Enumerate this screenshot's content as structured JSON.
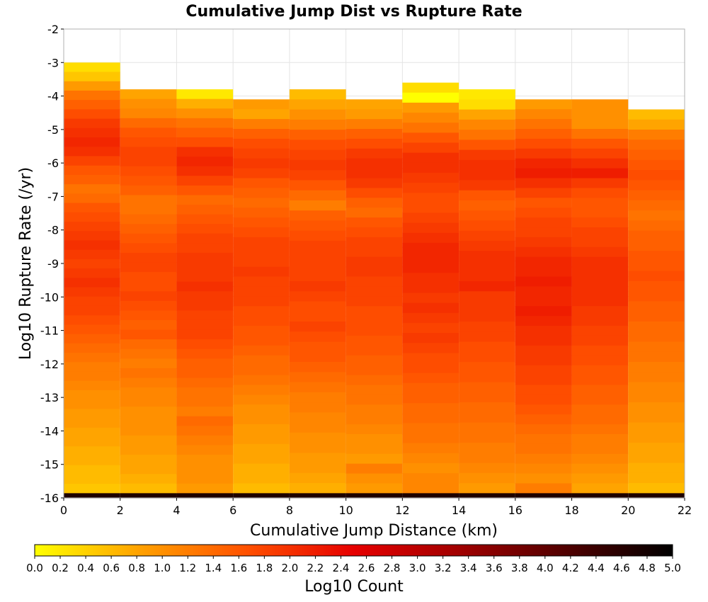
{
  "chart_data": {
    "type": "heatmap",
    "title": "Cumulative Jump Dist vs Rupture Rate",
    "xlabel": "Cumulative Jump Distance (km)",
    "ylabel": "Log10 Rupture Rate (/yr)",
    "xlim": [
      0,
      22
    ],
    "ylim": [
      -16,
      -2
    ],
    "x_ticks": [
      "0",
      "2",
      "4",
      "6",
      "8",
      "10",
      "12",
      "14",
      "16",
      "18",
      "20",
      "22"
    ],
    "y_ticks": [
      "-2",
      "-3",
      "-4",
      "-5",
      "-6",
      "-7",
      "-8",
      "-9",
      "-10",
      "-11",
      "-12",
      "-13",
      "-14",
      "-15",
      "-16"
    ],
    "x_bins": [
      0,
      2,
      4,
      6,
      8,
      10,
      12,
      14,
      16,
      18,
      20,
      22
    ],
    "y_bin_width": 0.288,
    "grid": true,
    "colorbar": {
      "label": "Log10 Count",
      "range": [
        0.0,
        5.0
      ],
      "ticks": [
        "0.0",
        "0.2",
        "0.4",
        "0.6",
        "0.8",
        "1.0",
        "1.2",
        "1.4",
        "1.6",
        "1.8",
        "2.0",
        "2.2",
        "2.4",
        "2.6",
        "2.8",
        "3.0",
        "3.2",
        "3.4",
        "3.6",
        "3.8",
        "4.0",
        "4.2",
        "4.4",
        "4.6",
        "4.8",
        "5.0"
      ],
      "colors": [
        "#ffff00",
        "#ffa000",
        "#ff5000",
        "#e60000",
        "#a00000",
        "#500000",
        "#000000"
      ]
    },
    "columns": [
      {
        "x_bin": "0-2",
        "top": -3.0,
        "values": [
          0.3,
          0.5,
          0.9,
          1.3,
          1.5,
          1.7,
          1.9,
          2.0,
          2.1,
          2.0,
          1.8,
          1.6,
          1.5,
          1.3,
          1.4,
          1.6,
          1.7,
          1.8,
          1.9,
          2.0,
          1.9,
          1.8,
          1.9,
          2.0,
          1.9,
          1.8,
          1.8,
          1.7,
          1.6,
          1.5,
          1.4,
          1.3,
          1.2,
          1.2,
          1.1,
          1.0,
          1.0,
          0.9,
          0.9,
          0.8,
          0.8,
          0.7,
          0.7,
          0.6,
          0.6,
          0.5,
          4.7
        ]
      },
      {
        "x_bin": "2-4",
        "top": -3.8,
        "values": [
          0.8,
          1.0,
          1.1,
          1.4,
          1.6,
          1.7,
          1.8,
          1.8,
          1.7,
          1.6,
          1.5,
          1.3,
          1.3,
          1.4,
          1.5,
          1.6,
          1.7,
          1.8,
          1.8,
          1.7,
          1.7,
          1.8,
          1.7,
          1.6,
          1.5,
          1.6,
          1.4,
          1.3,
          1.2,
          1.3,
          1.2,
          1.1,
          1.1,
          1.0,
          1.0,
          1.0,
          0.9,
          0.9,
          0.8,
          0.8,
          0.7,
          0.6,
          4.7
        ]
      },
      {
        "x_bin": "4-6",
        "top": -3.8,
        "values": [
          0.2,
          0.7,
          1.0,
          1.3,
          1.5,
          1.7,
          2.0,
          2.1,
          2.0,
          1.8,
          1.6,
          1.4,
          1.5,
          1.6,
          1.7,
          1.8,
          1.8,
          1.9,
          1.9,
          1.9,
          2.0,
          1.9,
          1.9,
          1.8,
          1.8,
          1.8,
          1.7,
          1.6,
          1.5,
          1.5,
          1.4,
          1.3,
          1.3,
          1.2,
          1.4,
          1.3,
          1.2,
          1.1,
          1.0,
          1.0,
          1.0,
          0.9,
          4.7
        ]
      },
      {
        "x_bin": "6-8",
        "top": -4.1,
        "values": [
          0.9,
          0.8,
          1.2,
          1.5,
          1.7,
          1.8,
          1.9,
          1.8,
          1.6,
          1.5,
          1.4,
          1.5,
          1.6,
          1.7,
          1.8,
          1.8,
          1.8,
          1.9,
          1.8,
          1.8,
          1.8,
          1.7,
          1.7,
          1.6,
          1.6,
          1.5,
          1.4,
          1.4,
          1.3,
          1.2,
          1.1,
          1.0,
          1.0,
          0.9,
          0.9,
          0.8,
          0.8,
          0.7,
          0.7,
          0.6,
          4.7
        ]
      },
      {
        "x_bin": "8-10",
        "top": -3.8,
        "values": [
          0.6,
          0.8,
          1.0,
          1.2,
          1.5,
          1.7,
          1.8,
          1.9,
          1.8,
          1.6,
          1.4,
          1.2,
          1.5,
          1.6,
          1.7,
          1.8,
          1.8,
          1.8,
          1.8,
          1.9,
          1.8,
          1.7,
          1.7,
          1.8,
          1.7,
          1.6,
          1.6,
          1.5,
          1.4,
          1.3,
          1.2,
          1.2,
          1.1,
          1.1,
          1.0,
          1.0,
          0.9,
          0.9,
          0.8,
          0.7,
          4.7
        ]
      },
      {
        "x_bin": "10-12",
        "top": -4.1,
        "values": [
          0.8,
          0.9,
          1.2,
          1.5,
          1.7,
          1.9,
          2.0,
          2.0,
          1.9,
          1.7,
          1.5,
          1.4,
          1.6,
          1.7,
          1.8,
          1.8,
          1.9,
          1.9,
          1.8,
          1.8,
          1.8,
          1.7,
          1.7,
          1.7,
          1.6,
          1.6,
          1.5,
          1.5,
          1.4,
          1.3,
          1.3,
          1.2,
          1.2,
          1.1,
          1.0,
          1.0,
          0.9,
          1.2,
          1.0,
          0.9,
          4.7
        ]
      },
      {
        "x_bin": "12-14",
        "top": -3.6,
        "values": [
          0.3,
          0.0,
          0.9,
          1.1,
          1.3,
          1.6,
          1.8,
          2.0,
          2.0,
          1.9,
          1.8,
          1.7,
          1.7,
          1.8,
          1.9,
          2.0,
          2.1,
          2.1,
          2.1,
          2.0,
          2.0,
          1.9,
          2.0,
          1.9,
          1.8,
          1.9,
          1.8,
          1.7,
          1.7,
          1.6,
          1.5,
          1.5,
          1.4,
          1.4,
          1.3,
          1.3,
          1.2,
          1.1,
          1.0,
          1.1,
          1.1,
          4.7
        ]
      },
      {
        "x_bin": "14-16",
        "top": -3.8,
        "values": [
          0.2,
          0.3,
          0.8,
          1.1,
          1.3,
          1.6,
          1.9,
          2.0,
          2.0,
          1.9,
          1.6,
          1.5,
          1.6,
          1.7,
          1.8,
          1.9,
          2.0,
          2.0,
          2.0,
          2.1,
          1.9,
          1.9,
          1.9,
          1.8,
          1.8,
          1.7,
          1.7,
          1.6,
          1.6,
          1.5,
          1.5,
          1.4,
          1.4,
          1.3,
          1.3,
          1.2,
          1.2,
          1.1,
          1.0,
          0.9,
          4.7
        ]
      },
      {
        "x_bin": "16-18",
        "top": -4.1,
        "values": [
          0.9,
          1.1,
          1.3,
          1.5,
          1.7,
          1.9,
          2.1,
          2.2,
          2.0,
          1.8,
          1.6,
          1.7,
          1.8,
          1.8,
          1.9,
          2.0,
          2.1,
          2.1,
          2.2,
          2.1,
          2.1,
          2.2,
          2.1,
          2.0,
          2.0,
          1.9,
          1.9,
          1.8,
          1.8,
          1.7,
          1.7,
          1.6,
          1.5,
          1.4,
          1.3,
          1.3,
          1.2,
          1.1,
          1.0,
          1.2,
          4.7
        ]
      },
      {
        "x_bin": "18-20",
        "top": -4.1,
        "values": [
          1.0,
          1.0,
          1.0,
          1.3,
          1.6,
          1.8,
          2.0,
          2.2,
          1.9,
          1.7,
          1.6,
          1.6,
          1.7,
          1.8,
          1.8,
          1.9,
          2.0,
          2.0,
          2.0,
          2.0,
          2.0,
          1.9,
          1.9,
          1.8,
          1.8,
          1.7,
          1.7,
          1.6,
          1.6,
          1.5,
          1.5,
          1.4,
          1.4,
          1.3,
          1.2,
          1.2,
          1.1,
          1.0,
          0.9,
          0.8,
          4.7
        ]
      },
      {
        "x_bin": "20-22",
        "top": -4.4,
        "values": [
          0.6,
          0.8,
          1.2,
          1.4,
          1.5,
          1.6,
          1.7,
          1.6,
          1.5,
          1.4,
          1.3,
          1.4,
          1.5,
          1.5,
          1.6,
          1.6,
          1.7,
          1.6,
          1.6,
          1.5,
          1.5,
          1.4,
          1.4,
          1.3,
          1.3,
          1.2,
          1.2,
          1.1,
          1.1,
          1.0,
          1.0,
          0.9,
          0.9,
          0.8,
          0.8,
          0.7,
          0.7,
          0.6,
          4.7
        ]
      }
    ]
  }
}
